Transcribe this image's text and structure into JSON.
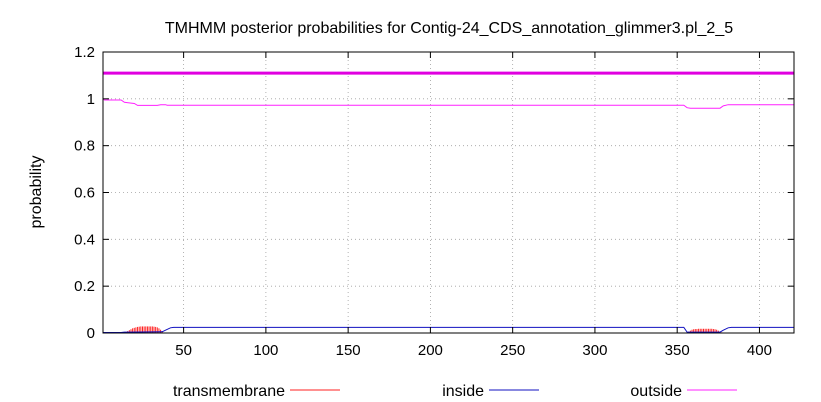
{
  "chart_data": {
    "type": "line",
    "title": "TMHMM posterior probabilities for Contig-24_CDS_annotation_glimmer3.pl_2_5",
    "ylabel": "probability",
    "xlabel": "",
    "xlim": [
      1,
      421
    ],
    "ylim": [
      0,
      1.2
    ],
    "x_ticks": [
      50,
      100,
      150,
      200,
      250,
      300,
      350,
      400
    ],
    "y_ticks": [
      0,
      0.2,
      0.4,
      0.6,
      0.8,
      1,
      1.2
    ],
    "y_tick_labels": [
      "0",
      "0.2",
      "0.4",
      "0.6",
      "0.8",
      "1",
      "1.2"
    ],
    "legend_position": "bottom",
    "top_band": {
      "y": 1.11,
      "color": "#e000e0"
    },
    "series": [
      {
        "name": "transmembrane",
        "color": "#ff2020",
        "style": "impulses",
        "x": [
          15,
          16,
          17,
          18,
          19,
          20,
          21,
          22,
          23,
          24,
          25,
          26,
          27,
          28,
          29,
          30,
          31,
          32,
          33,
          34,
          35,
          36,
          37,
          357,
          358,
          359,
          360,
          361,
          362,
          363,
          364,
          365,
          366,
          367,
          368,
          369,
          370,
          371,
          372,
          373,
          374,
          375,
          376,
          377
        ],
        "y": [
          0.005,
          0.008,
          0.012,
          0.016,
          0.02,
          0.022,
          0.024,
          0.026,
          0.027,
          0.028,
          0.028,
          0.028,
          0.028,
          0.028,
          0.028,
          0.028,
          0.028,
          0.027,
          0.026,
          0.024,
          0.02,
          0.014,
          0.008,
          0.006,
          0.01,
          0.014,
          0.016,
          0.017,
          0.017,
          0.018,
          0.018,
          0.018,
          0.018,
          0.018,
          0.018,
          0.018,
          0.018,
          0.018,
          0.017,
          0.016,
          0.014,
          0.01,
          0.006,
          0.003
        ]
      },
      {
        "name": "inside",
        "color": "#1010c0",
        "style": "line",
        "x": [
          1,
          12,
          14,
          37,
          39,
          42,
          44,
          354,
          356,
          376,
          378,
          381,
          383,
          421
        ],
        "y": [
          0.002,
          0.002,
          0.004,
          0.005,
          0.012,
          0.022,
          0.024,
          0.024,
          0.004,
          0.004,
          0.012,
          0.022,
          0.024,
          0.024
        ]
      },
      {
        "name": "outside",
        "color": "#ff20ff",
        "style": "line",
        "x": [
          1,
          2,
          12,
          14,
          20,
          22,
          34,
          36,
          39,
          40,
          354,
          356,
          358,
          376,
          378,
          381,
          421
        ],
        "y": [
          0.998,
          0.995,
          0.995,
          0.985,
          0.98,
          0.972,
          0.972,
          0.975,
          0.975,
          0.973,
          0.973,
          0.962,
          0.96,
          0.96,
          0.97,
          0.975,
          0.975
        ]
      }
    ]
  }
}
